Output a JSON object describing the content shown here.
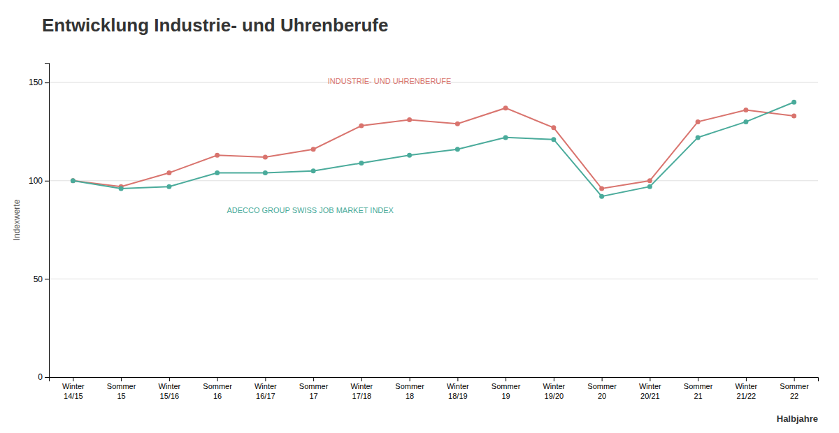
{
  "chart_data": {
    "type": "line",
    "title": "Entwicklung Industrie- und Uhrenberufe",
    "y_label": "Indexwerte",
    "x_label": "Halbjahre",
    "categories": [
      "Winter\n14/15",
      "Sommer\n15",
      "Winter\n15/16",
      "Sommer\n16",
      "Winter\n16/17",
      "Sommer\n17",
      "Winter\n17/18",
      "Sommer\n18",
      "Winter\n18/19",
      "Sommer\n19",
      "Winter\n19/20",
      "Sommer\n20",
      "Winter\n20/21",
      "Sommer\n21",
      "Winter\n21/22",
      "Sommer\n22"
    ],
    "series": [
      {
        "name": "INDUSTRIE- UND UHRENBERUFE",
        "color": "#d9746e",
        "values": [
          100,
          97,
          104,
          113,
          112,
          116,
          128,
          131,
          129,
          137,
          127,
          96,
          100,
          130,
          136,
          133
        ]
      },
      {
        "name": "ADECCO GROUP SWISS JOB MARKET INDEX",
        "color": "#4aab9b",
        "values": [
          100,
          96,
          97,
          104,
          104,
          105,
          109,
          113,
          116,
          122,
          121,
          92,
          97,
          122,
          130,
          140
        ]
      }
    ],
    "ylim": [
      0,
      160
    ],
    "yticks": [
      0,
      50,
      100,
      150
    ],
    "grid": true,
    "marker": "circle"
  }
}
